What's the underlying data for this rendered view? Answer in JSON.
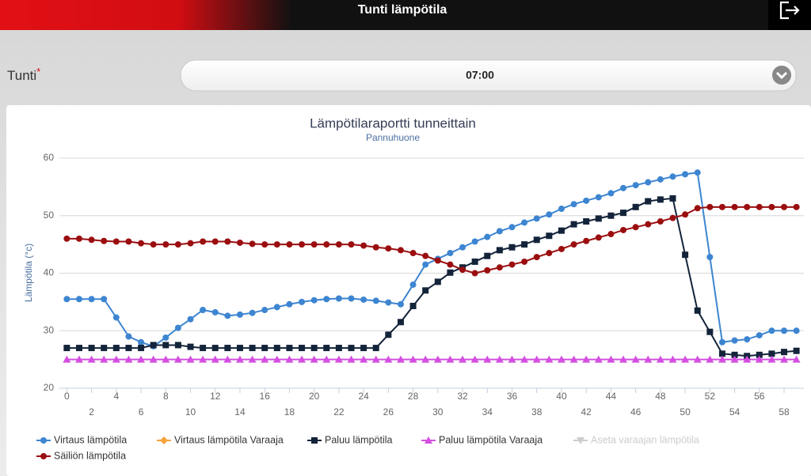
{
  "header": {
    "title": "Tunti lämpötila"
  },
  "form": {
    "label": "Tunti",
    "required": "*",
    "value": "07:00"
  },
  "chart_data": {
    "type": "line",
    "title": "Lämpötilaraportti tunneittain",
    "subtitle": "Pannuhuone",
    "y_label": "Lämpötila (°c)",
    "x": [
      0,
      1,
      2,
      3,
      4,
      5,
      6,
      7,
      8,
      9,
      10,
      11,
      12,
      13,
      14,
      15,
      16,
      17,
      18,
      19,
      20,
      21,
      22,
      23,
      24,
      25,
      26,
      27,
      28,
      29,
      30,
      31,
      32,
      33,
      34,
      35,
      36,
      37,
      38,
      39,
      40,
      41,
      42,
      43,
      44,
      45,
      46,
      47,
      48,
      49,
      50,
      51,
      52,
      53,
      54,
      55,
      56,
      57,
      58,
      59
    ],
    "xlim": [
      -0.6,
      59.6
    ],
    "xticks": [
      0,
      2,
      4,
      6,
      8,
      10,
      12,
      14,
      16,
      18,
      20,
      22,
      24,
      26,
      28,
      30,
      32,
      34,
      36,
      38,
      40,
      42,
      44,
      46,
      48,
      50,
      52,
      54,
      56,
      58
    ],
    "ylim": [
      20,
      60
    ],
    "yticks": [
      20,
      30,
      40,
      50,
      60
    ],
    "grid": true,
    "series": [
      {
        "name": "Virtaus lämpötila",
        "color": "#3d85d1",
        "marker": "circle",
        "visible": true,
        "values": [
          35.5,
          35.5,
          35.5,
          35.5,
          32.3,
          29,
          28,
          27.3,
          28.8,
          30.5,
          32,
          33.6,
          33.2,
          32.6,
          32.8,
          33.1,
          33.6,
          34.1,
          34.6,
          35,
          35.3,
          35.5,
          35.6,
          35.6,
          35.4,
          35.2,
          34.9,
          34.6,
          38,
          41.5,
          42.5,
          43.5,
          44.5,
          45.5,
          46.3,
          47.3,
          48,
          48.8,
          49.5,
          50.2,
          51.2,
          52,
          52.6,
          53.2,
          53.9,
          54.8,
          55.3,
          55.8,
          56.3,
          56.8,
          57.2,
          57.5,
          42.8,
          28,
          28.3,
          28.5,
          29.2,
          30,
          30,
          30
        ]
      },
      {
        "name": "Virtaus lämpötila Varaaja",
        "color": "#f7a33a",
        "marker": "diamond",
        "visible": true,
        "values": [
          null,
          null,
          null,
          null,
          null,
          null,
          null,
          null,
          null,
          null,
          null,
          null,
          null,
          null,
          null,
          null,
          null,
          null,
          null,
          null,
          null,
          null,
          null,
          null,
          null,
          null,
          null,
          null,
          null,
          null,
          null,
          null,
          null,
          null,
          null,
          null,
          null,
          null,
          null,
          null,
          null,
          null,
          null,
          null,
          null,
          null,
          null,
          null,
          null,
          null,
          null,
          null,
          null,
          null,
          null,
          null,
          null,
          null,
          null,
          null
        ]
      },
      {
        "name": "Paluu lämpötila",
        "color": "#13233a",
        "marker": "square",
        "visible": true,
        "values": [
          27,
          27,
          27,
          27,
          27,
          27,
          27,
          27.5,
          27.5,
          27.5,
          27.2,
          27,
          27,
          27,
          27,
          27,
          27,
          27,
          27,
          27,
          27,
          27,
          27,
          27,
          27,
          27,
          29.3,
          31.5,
          34.3,
          37,
          38.5,
          40.1,
          41,
          42,
          43,
          44,
          44.5,
          45,
          45.8,
          46.5,
          47.4,
          48.5,
          49,
          49.5,
          50,
          50.5,
          51.5,
          52.5,
          52.8,
          53,
          43.2,
          33.5,
          29.8,
          26,
          25.8,
          25.6,
          25.8,
          26,
          26.3,
          26.5
        ]
      },
      {
        "name": "Paluu lämpötila Varaaja",
        "color": "#d44ee0",
        "marker": "triangle",
        "visible": true,
        "values": [
          25,
          25,
          25,
          25,
          25,
          25,
          25,
          25,
          25,
          25,
          25,
          25,
          25,
          25,
          25,
          25,
          25,
          25,
          25,
          25,
          25,
          25,
          25,
          25,
          25,
          25,
          25,
          25,
          25,
          25,
          25,
          25,
          25,
          25,
          25,
          25,
          25,
          25,
          25,
          25,
          25,
          25,
          25,
          25,
          25,
          25,
          25,
          25,
          25,
          25,
          25,
          25,
          25,
          25,
          25,
          25,
          25,
          25,
          25,
          25
        ]
      },
      {
        "name": "Aseta varaajan lämpötila",
        "color": "#cccccc",
        "marker": "triangle-down",
        "visible": false,
        "values": [
          null,
          null,
          null,
          null,
          null,
          null,
          null,
          null,
          null,
          null,
          null,
          null,
          null,
          null,
          null,
          null,
          null,
          null,
          null,
          null,
          null,
          null,
          null,
          null,
          null,
          null,
          null,
          null,
          null,
          null,
          null,
          null,
          null,
          null,
          null,
          null,
          null,
          null,
          null,
          null,
          null,
          null,
          null,
          null,
          null,
          null,
          null,
          null,
          null,
          null,
          null,
          null,
          null,
          null,
          null,
          null,
          null,
          null,
          null,
          null
        ]
      },
      {
        "name": "Säiliön lämpötila",
        "color": "#9b0e10",
        "marker": "circle",
        "visible": true,
        "values": [
          46,
          46,
          45.8,
          45.6,
          45.5,
          45.5,
          45.2,
          45,
          45,
          45,
          45.2,
          45.5,
          45.5,
          45.5,
          45.3,
          45.1,
          45,
          45,
          45,
          45,
          45,
          45,
          45,
          45,
          44.8,
          44.5,
          44.3,
          44,
          43.5,
          43,
          42.2,
          41.5,
          40.6,
          40,
          40.5,
          41,
          41.5,
          42,
          42.8,
          43.5,
          44.2,
          45,
          45.6,
          46.2,
          46.8,
          47.5,
          48,
          48.5,
          49,
          49.6,
          50.2,
          51.3,
          51.5,
          51.5,
          51.5,
          51.5,
          51.5,
          51.5,
          51.5,
          51.5
        ]
      }
    ]
  }
}
